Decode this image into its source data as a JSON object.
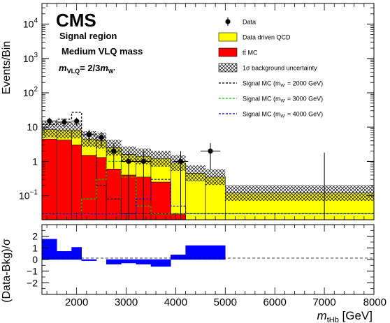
{
  "chart_data": [
    {
      "type": "bar",
      "panel": "main",
      "ylabel": "Events/Bin",
      "yscale": "log",
      "ylim": [
        0.02,
        40000
      ],
      "xlim": [
        1300,
        8000
      ],
      "annotations": {
        "experiment": "CMS",
        "region": "Signal region",
        "mass": "Medium VLQ mass",
        "coupling_prefix": "m",
        "coupling_sub": "VLQ",
        "coupling_mid": "= 2/3",
        "coupling_m": "m",
        "coupling_sub2": "W'"
      },
      "legend_position": "top-right",
      "legend": [
        {
          "key": "data",
          "label": "Data",
          "color": "#000000"
        },
        {
          "key": "qcd",
          "label": "Data driven QCD",
          "color": "#ffff00"
        },
        {
          "key": "ttbar",
          "label": "tt̄ MC",
          "color": "#ff0000"
        },
        {
          "key": "unc",
          "label": "1σ background uncertainty",
          "color": "#000000"
        },
        {
          "key": "sig2000",
          "label": "Signal MC (m",
          "sub": "W'",
          "suffix": " = 2000 GeV)",
          "color": "#000000"
        },
        {
          "key": "sig3000",
          "label": "Signal MC (m",
          "sub": "W'",
          "suffix": " = 3000 GeV)",
          "color": "#00cc00"
        },
        {
          "key": "sig4000",
          "label": "Signal MC (m",
          "sub": "W'",
          "suffix": " = 4000 GeV)",
          "color": "#0000cc"
        }
      ],
      "bin_edges": [
        1300,
        1600,
        1900,
        2100,
        2400,
        2600,
        2900,
        3200,
        3500,
        3900,
        4200,
        4600,
        5000,
        8000
      ],
      "series": [
        {
          "name": "Data driven QCD (stack total)",
          "color": "#ffff00",
          "values": [
            8.5,
            8.0,
            8.0,
            4.5,
            4.0,
            2.5,
            1.6,
            1.4,
            1.2,
            0.9,
            0.45,
            0.35,
            0.12
          ]
        },
        {
          "name": "tt̄ MC",
          "color": "#ff0000",
          "values": [
            4.5,
            4.2,
            3.0,
            1.5,
            1.3,
            0.6,
            0.4,
            0.35,
            0.25,
            0.03,
            0.02,
            0.02,
            0.02
          ]
        },
        {
          "name": "Data",
          "color": "#000000",
          "x": [
            1450,
            1750,
            2000,
            2250,
            2500,
            2750,
            3050,
            3350,
            4100,
            4700
          ],
          "values": [
            15,
            14,
            15,
            6,
            5,
            2,
            1,
            1,
            1,
            2
          ]
        },
        {
          "name": "Signal MC (mW' = 2000 GeV)",
          "color": "#000000",
          "values": [
            12,
            17,
            27,
            6,
            0.2,
            0.08,
            0.03,
            0.03,
            0.03,
            0.03,
            0.03,
            0.03,
            0.03
          ]
        },
        {
          "name": "Signal MC (mW' = 3000 GeV)",
          "color": "#00cc00",
          "values": [
            0.03,
            0.03,
            0.03,
            0.08,
            0.3,
            1.0,
            0.35,
            0.05,
            0.03,
            0.03,
            0.03,
            0.03,
            0.03
          ]
        },
        {
          "name": "Signal MC (mW' = 4000 GeV)",
          "color": "#0000cc",
          "values": [
            0.03,
            0.03,
            0.03,
            0.03,
            0.03,
            0.03,
            0.03,
            0.08,
            0.3,
            0.05,
            0.03,
            0.03,
            0.03
          ]
        }
      ],
      "yticks": [
        {
          "base": "10",
          "exp": "−1",
          "v": 0.1
        },
        {
          "base": "1",
          "exp": "",
          "v": 1
        },
        {
          "base": "10",
          "exp": "",
          "v": 10
        },
        {
          "base": "10",
          "exp": "2",
          "v": 100
        },
        {
          "base": "10",
          "exp": "3",
          "v": 1000
        },
        {
          "base": "10",
          "exp": "4",
          "v": 10000
        }
      ]
    },
    {
      "type": "bar",
      "panel": "ratio",
      "ylabel": "(Data-Bkg)/σ",
      "xlabel_m": "m",
      "xlabel_sub": "tHb",
      "xlabel_unit": " [GeV]",
      "xlim": [
        1300,
        8000
      ],
      "ylim": [
        -3,
        3
      ],
      "color": "#0000ff",
      "bin_edges": [
        1300,
        1600,
        1900,
        2100,
        2400,
        2600,
        2900,
        3200,
        3500,
        3900,
        4200,
        4600,
        5000,
        8000
      ],
      "values": [
        1.75,
        0.7,
        1.05,
        -0.1,
        0.0,
        -0.4,
        -0.3,
        -0.4,
        -0.6,
        0.4,
        1.2,
        1.2,
        0.0
      ],
      "xticks": [
        "2000",
        "3000",
        "4000",
        "5000",
        "6000",
        "7000",
        "8000"
      ],
      "yticks": [
        "2",
        "1",
        "0",
        "−1",
        "−2"
      ]
    }
  ]
}
